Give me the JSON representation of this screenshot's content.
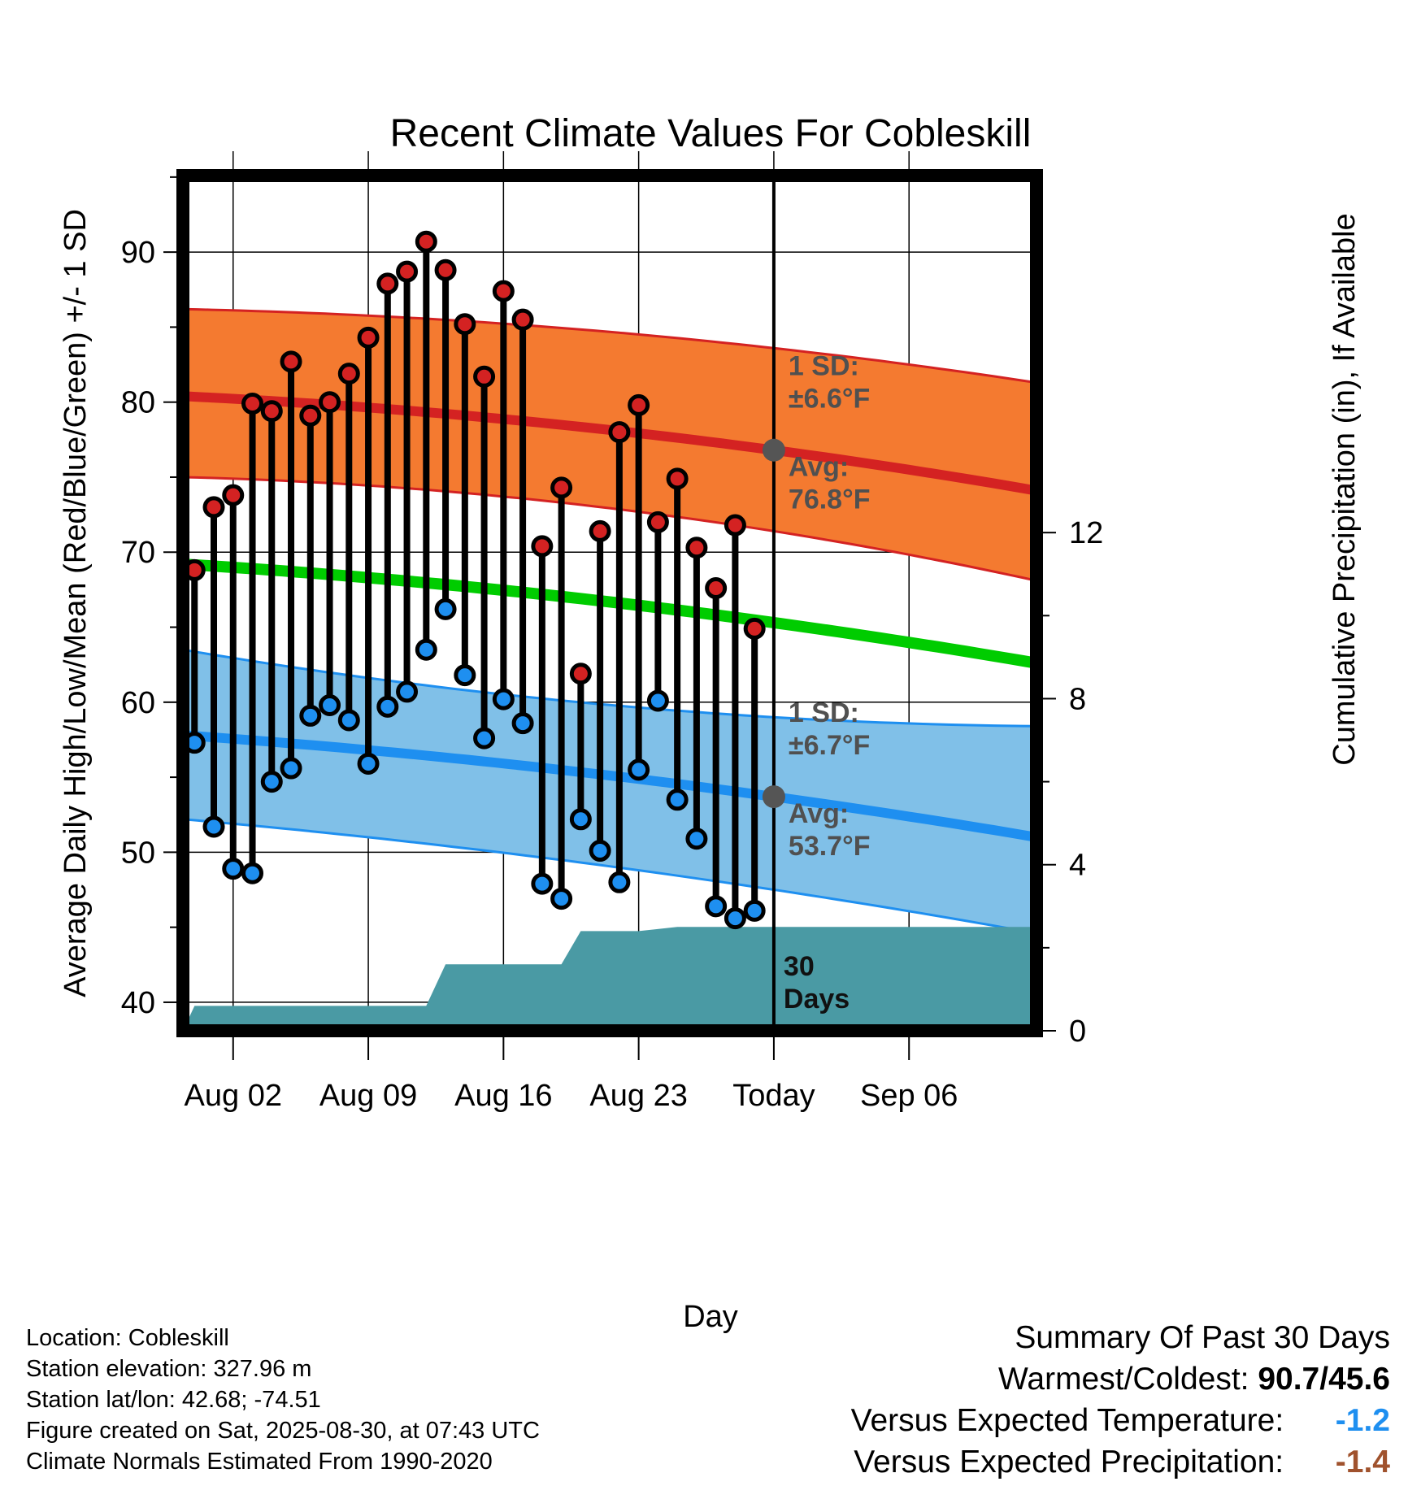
{
  "chart_data": {
    "type": "line",
    "title": "Recent Climate Values For Cobleskill",
    "xlabel": "Day",
    "ylabel": "Average Daily High/Low/Mean (Red/Blue/Green) +/- 1 SD",
    "y2label": "Cumulative Precipitation (in), If Available",
    "x_start_date": "2025-07-30",
    "x_range_days": [
      0.4,
      44.6
    ],
    "today_day": 31,
    "ylim": [
      38.1,
      95.1
    ],
    "y_ticks": [
      40,
      50,
      60,
      70,
      80,
      90
    ],
    "y2lim": [
      0,
      20.6
    ],
    "y2_ticks": [
      0,
      4,
      8,
      12
    ],
    "x_tick_labels": [
      {
        "day": 3,
        "label": "Aug 02"
      },
      {
        "day": 10,
        "label": "Aug 09"
      },
      {
        "day": 17,
        "label": "Aug 16"
      },
      {
        "day": 24,
        "label": "Aug 23"
      },
      {
        "day": 31,
        "label": "Today"
      },
      {
        "day": 38,
        "label": "Sep 06"
      }
    ],
    "grid": true,
    "normals": {
      "high_mean": {
        "start": 80.4,
        "today": 76.8,
        "end": 74.1
      },
      "high_band": {
        "upper": {
          "start": 86.2,
          "today": 83.6,
          "end": 81.3
        },
        "lower": {
          "start": 75.0,
          "today": 71.4,
          "end": 68.1
        }
      },
      "mean": {
        "start": 69.2,
        "today": 65.3,
        "end": 62.6
      },
      "low_mean": {
        "start": 57.8,
        "today": 53.7,
        "end": 51.0
      },
      "low_band": {
        "upper": {
          "start": 63.5,
          "today": 59.0,
          "end": 58.4
        },
        "lower": {
          "start": 52.2,
          "today": 47.5,
          "end": 44.6
        }
      }
    },
    "daily": {
      "days": [
        1,
        2,
        3,
        4,
        5,
        6,
        7,
        8,
        9,
        10,
        11,
        12,
        13,
        14,
        15,
        16,
        17,
        18,
        19,
        20,
        21,
        22,
        23,
        24,
        25,
        26,
        27,
        28,
        29,
        30
      ],
      "highs": [
        68.8,
        73.0,
        73.8,
        79.9,
        79.4,
        82.7,
        79.1,
        80.0,
        81.9,
        84.3,
        87.9,
        88.7,
        90.7,
        88.8,
        85.2,
        81.7,
        87.4,
        85.5,
        70.4,
        74.3,
        61.9,
        71.4,
        78.0,
        79.8,
        72.0,
        74.9,
        70.3,
        67.6,
        71.8,
        64.9
      ],
      "lows": [
        57.3,
        51.7,
        48.9,
        48.6,
        54.7,
        55.6,
        59.1,
        59.8,
        58.8,
        55.9,
        59.7,
        60.7,
        63.5,
        66.2,
        61.8,
        57.6,
        60.2,
        58.6,
        47.9,
        46.9,
        52.2,
        50.1,
        48.0,
        55.5,
        60.1,
        53.5,
        50.9,
        46.4,
        45.6,
        46.1
      ]
    },
    "precip_cumulative": [
      {
        "day": 0.4,
        "value": 0
      },
      {
        "day": 1,
        "value": 0.6
      },
      {
        "day": 13,
        "value": 0.6
      },
      {
        "day": 14,
        "value": 1.6
      },
      {
        "day": 20,
        "value": 1.6
      },
      {
        "day": 21,
        "value": 2.4
      },
      {
        "day": 24,
        "value": 2.4
      },
      {
        "day": 26,
        "value": 2.5
      },
      {
        "day": 44.6,
        "value": 2.5
      }
    ],
    "annotations": {
      "high_sd_label": "1 SD:",
      "high_sd_value": "±6.6°F",
      "high_avg_label": "Avg:",
      "high_avg_value": "76.8°F",
      "low_sd_label": "1 SD:",
      "low_sd_value": "±6.7°F",
      "low_avg_label": "Avg:",
      "low_avg_value": "53.7°F",
      "days_count": "30",
      "days_label": "Days"
    },
    "colors": {
      "high_band": "#f47a30",
      "high_line": "#d42222",
      "mean_line": "#00cc00",
      "low_band": "#80c0e8",
      "low_line": "#1e8ff0",
      "precip": "#4a9aa4",
      "high_dot": "#d42222",
      "low_dot": "#1e8ff0",
      "today_marker": "#555555",
      "annotation_text": "#505050"
    }
  },
  "footer": {
    "location": "Location: Cobleskill",
    "elevation": "Station elevation: 327.96 m",
    "latlon": "Station lat/lon: 42.68; -74.51",
    "created": "Figure created on Sat, 2025-08-30, at 07:43 UTC",
    "normals": "Climate Normals Estimated From 1990-2020"
  },
  "summary": {
    "title": "Summary Of Past 30 Days",
    "warmest_coldest_label": "Warmest/Coldest:",
    "warmest_coldest_value": "90.7/45.6",
    "temp_label": "Versus Expected Temperature:",
    "temp_value": "-1.2",
    "temp_color": "#1e8ff0",
    "precip_label": "Versus Expected Precipitation:",
    "precip_value": "-1.4",
    "precip_color": "#a0522d"
  }
}
